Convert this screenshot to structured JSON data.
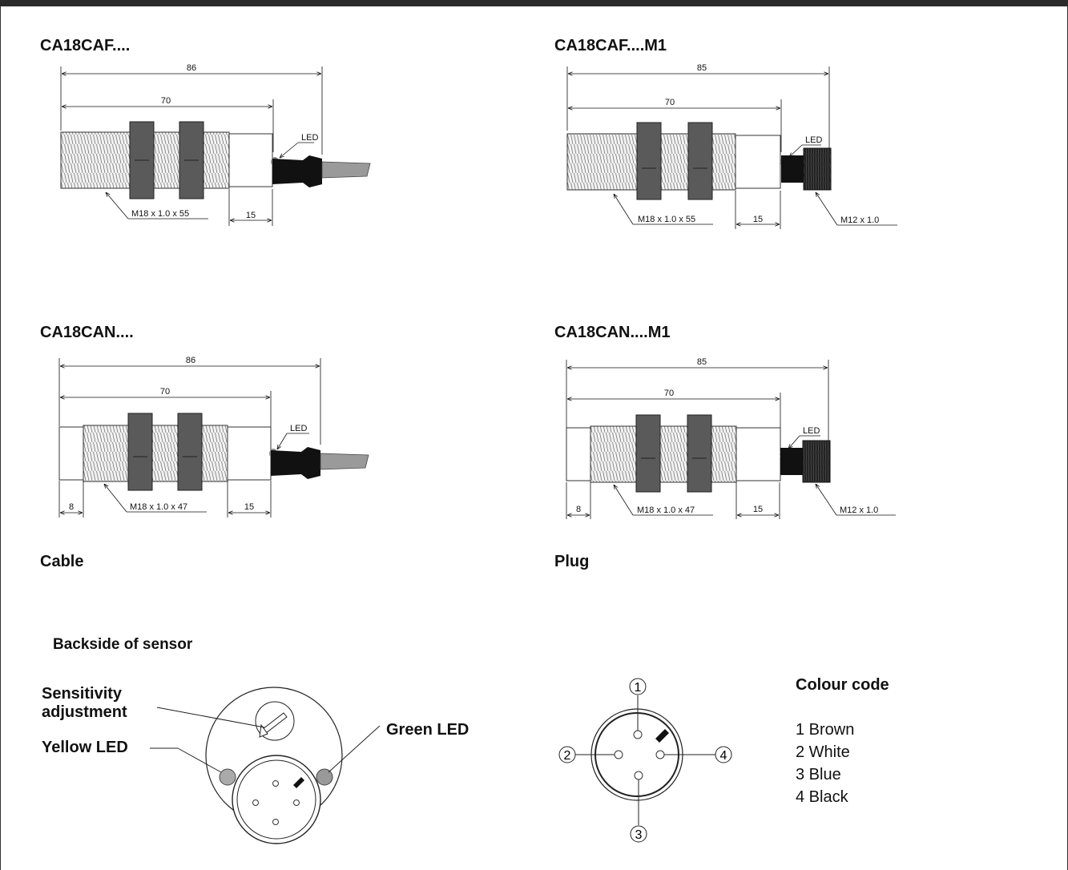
{
  "drawings": {
    "cable_f": {
      "title": "CA18CAF....",
      "overall": "86",
      "body": "70",
      "thread": "M18 x 1.0 x 55",
      "tail": "15",
      "led": "LED"
    },
    "plug_f": {
      "title": "CA18CAF....M1",
      "overall": "85",
      "body": "70",
      "thread": "M18 x 1.0 x 55",
      "tail": "15",
      "led": "LED",
      "connector": "M12 x 1.0"
    },
    "cable_n": {
      "title": "CA18CAN....",
      "overall": "86",
      "body": "70",
      "thread": "M18 x 1.0 x 47",
      "tail": "15",
      "front": "8",
      "led": "LED"
    },
    "plug_n": {
      "title": "CA18CAN....M1",
      "overall": "85",
      "body": "70",
      "thread": "M18 x 1.0 x 47",
      "tail": "15",
      "front": "8",
      "led": "LED",
      "connector": "M12 x 1.0"
    }
  },
  "captions": {
    "cable": "Cable",
    "plug": "Plug"
  },
  "backside": {
    "title": "Backside of sensor",
    "sensitivity": [
      "Sensitivity",
      "adjustment"
    ],
    "yellow_led": "Yellow LED",
    "green_led": "Green LED"
  },
  "pinout": {
    "pins": [
      "1",
      "2",
      "3",
      "4"
    ],
    "title": "Colour code",
    "colours": [
      "1 Brown",
      "2 White",
      "3 Blue",
      "4 Black"
    ]
  }
}
